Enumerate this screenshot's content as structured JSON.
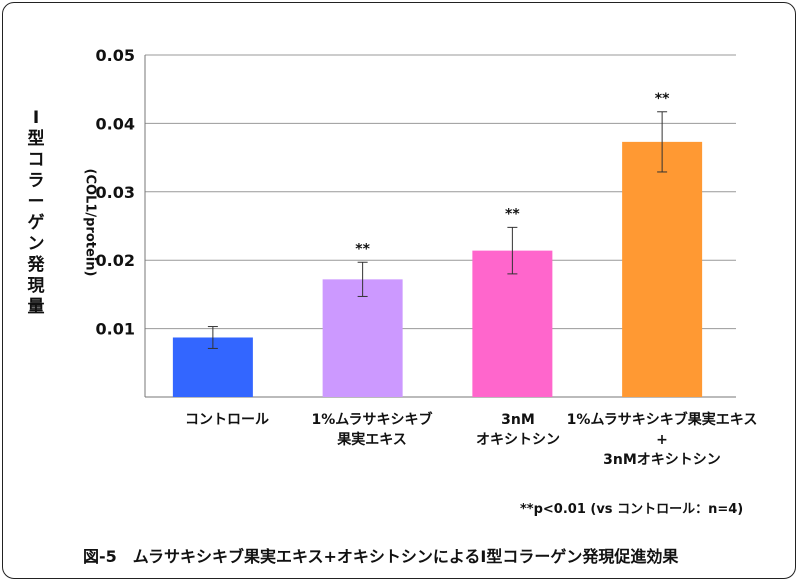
{
  "chart_data": {
    "type": "bar",
    "title": "",
    "ylabel_main": [
      "Ⅰ",
      "型",
      "コ",
      "ラ",
      "ー",
      "ゲ",
      "ン",
      "発",
      "現",
      "量"
    ],
    "ylabel_unit": "(COL1/protein)",
    "ylim": [
      0,
      0.05
    ],
    "yticks": [
      "0.01",
      "0.02",
      "0.03",
      "0.04",
      "0.05"
    ],
    "ytick_values": [
      0.01,
      0.02,
      0.03,
      0.04,
      0.05
    ],
    "grid": true,
    "categories": [
      [
        "コントロール"
      ],
      [
        "1%ムラサキシキブ",
        "果実エキス"
      ],
      [
        "3nM",
        "オキシトシン"
      ],
      [
        "1%ムラサキシキブ果実エキス",
        "+",
        "3nMオキシトシン"
      ]
    ],
    "values": [
      0.0087,
      0.0172,
      0.0214,
      0.0373
    ],
    "errors": [
      0.0016,
      0.0025,
      0.0034,
      0.0044
    ],
    "significance": [
      "",
      "**",
      "**",
      "**"
    ],
    "colors": [
      "#3366ff",
      "#cc99ff",
      "#ff66cc",
      "#ff9933"
    ],
    "footnote": "**p<0.01 (vs コントロール：n=4)",
    "caption": "図-5　ムラサキシキブ果実エキス+オキシトシンによるⅠ型コラーゲン発現促進効果"
  }
}
